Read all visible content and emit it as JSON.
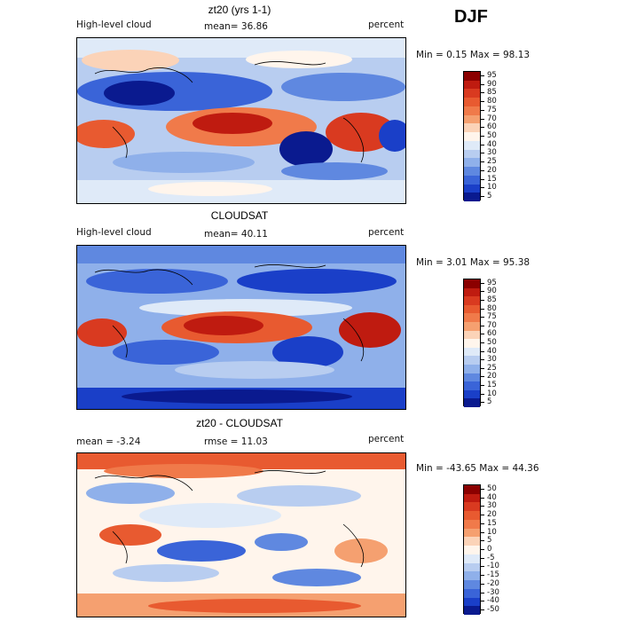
{
  "season": "DJF",
  "panels": [
    {
      "title": "zt20 (yrs 1-1)",
      "left_label": "High-level cloud",
      "center_label": "mean=  36.86",
      "right_label": "percent",
      "minmax": "Min =    0.15 Max =   98.13",
      "colorbar": {
        "labels": [
          "95",
          "90",
          "85",
          "80",
          "75",
          "70",
          "60",
          "50",
          "40",
          "30",
          "25",
          "20",
          "15",
          "10",
          "5"
        ],
        "colors": [
          "#8b0000",
          "#bf1b10",
          "#d93a20",
          "#e85a30",
          "#f07a4a",
          "#f5a070",
          "#fbd3b8",
          "#fff5ec",
          "#dfeaf8",
          "#b8cdf0",
          "#8fb0ea",
          "#5f88e0",
          "#3a64d8",
          "#1a3fc8",
          "#0a1a8f"
        ]
      }
    },
    {
      "title": "CLOUDSAT",
      "left_label": "High-level cloud",
      "center_label": "mean=  40.11",
      "right_label": "percent",
      "minmax": "Min =    3.01 Max =   95.38",
      "colorbar": {
        "labels": [
          "95",
          "90",
          "85",
          "80",
          "75",
          "70",
          "60",
          "50",
          "40",
          "30",
          "25",
          "20",
          "15",
          "10",
          "5"
        ],
        "colors": [
          "#8b0000",
          "#bf1b10",
          "#d93a20",
          "#e85a30",
          "#f07a4a",
          "#f5a070",
          "#fbd3b8",
          "#fff5ec",
          "#dfeaf8",
          "#b8cdf0",
          "#8fb0ea",
          "#5f88e0",
          "#3a64d8",
          "#1a3fc8",
          "#0a1a8f"
        ]
      }
    },
    {
      "title": "zt20 - CLOUDSAT",
      "left_label": "mean =   -3.24",
      "center_label": "rmse =   11.03",
      "right_label": "percent",
      "minmax": "Min = -43.65 Max =   44.36",
      "colorbar": {
        "labels": [
          "50",
          "40",
          "30",
          "20",
          "15",
          "10",
          "5",
          "0",
          "-5",
          "-10",
          "-15",
          "-20",
          "-30",
          "-40",
          "-50"
        ],
        "colors": [
          "#8b0000",
          "#bf1b10",
          "#d93a20",
          "#e85a30",
          "#f07a4a",
          "#f5a070",
          "#fbd3b8",
          "#fff5ec",
          "#dfeaf8",
          "#b8cdf0",
          "#8fb0ea",
          "#5f88e0",
          "#3a64d8",
          "#1a3fc8",
          "#0a1a8f"
        ]
      }
    }
  ]
}
